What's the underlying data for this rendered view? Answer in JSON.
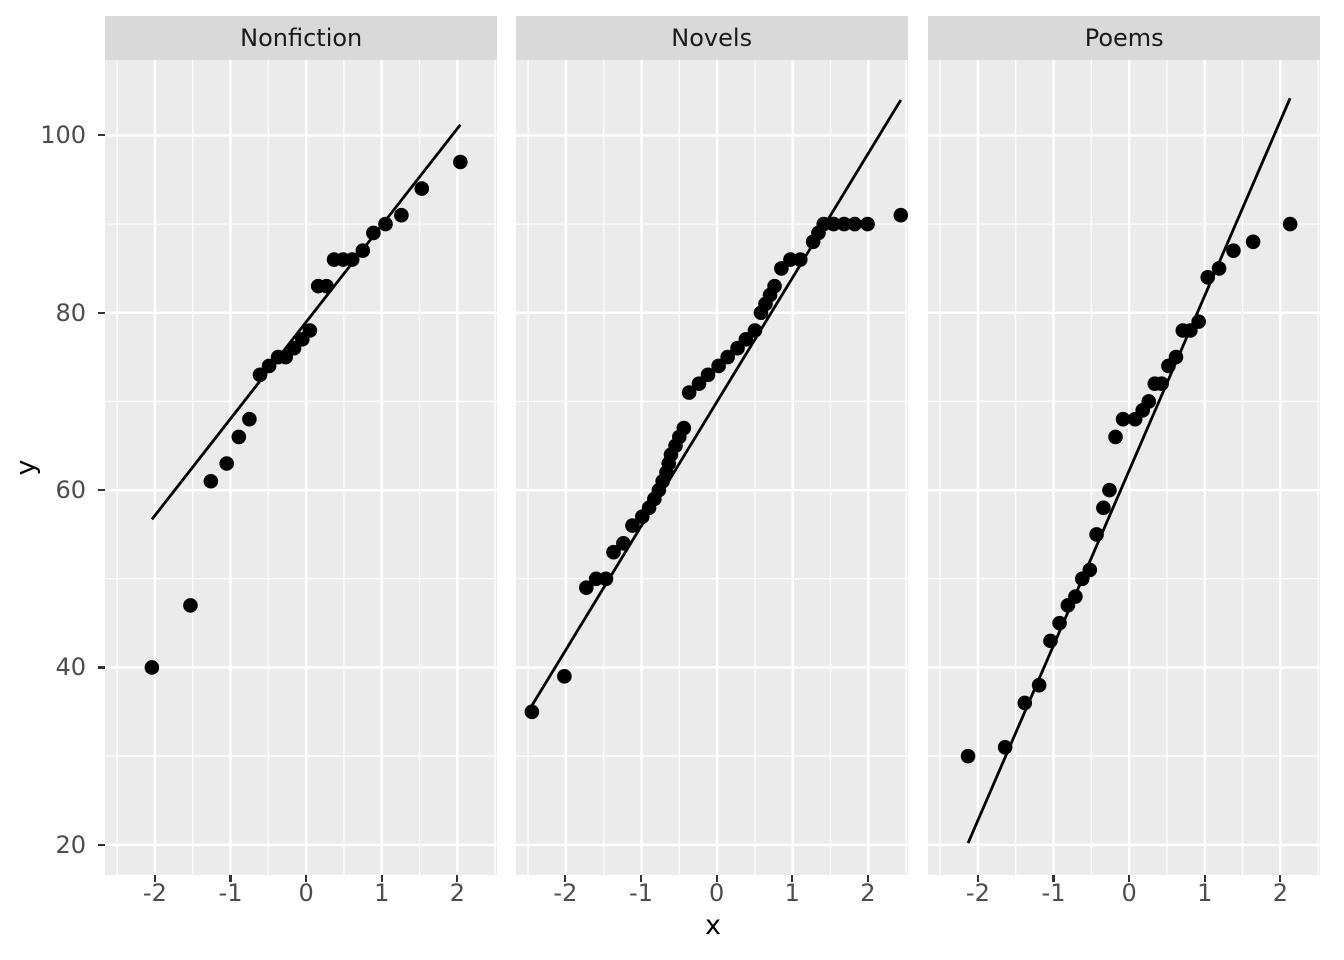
{
  "chart_data": {
    "type": "scatter",
    "description": "Faceted normal Q-Q style scatter plot with reference lines, one panel per book genre",
    "xlabel": "x",
    "ylabel": "y",
    "xlim": [
      -2.66,
      2.53
    ],
    "ylim": [
      16.6,
      108.5
    ],
    "x_major_ticks": [
      -2,
      -1,
      0,
      1,
      2
    ],
    "x_tick_labels": [
      "-2",
      "-1",
      "0",
      "1",
      "2"
    ],
    "x_minor_gridlines": [
      -2.5,
      -1.5,
      -0.5,
      0.5,
      1.5,
      2.5
    ],
    "y_major_ticks": [
      20,
      40,
      60,
      80,
      100
    ],
    "y_tick_labels": [
      "20",
      "40",
      "60",
      "80",
      "100"
    ],
    "y_minor_gridlines": [
      30,
      50,
      70,
      90
    ],
    "grid": true,
    "legend": "none",
    "colors": {
      "panel_background": "#ebebeb",
      "strip_background": "#d9d9d9",
      "gridline": "#ffffff",
      "point": "#000000",
      "line": "#000000",
      "axis_text": "#4d4d4d",
      "axis_title": "#000000",
      "tick_mark": "#333333",
      "page_background": "#ffffff"
    },
    "panels": [
      {
        "label": "Nonfiction",
        "points": [
          [
            -2.04,
            40
          ],
          [
            -1.53,
            47
          ],
          [
            -1.26,
            61
          ],
          [
            -1.05,
            63
          ],
          [
            -0.89,
            66
          ],
          [
            -0.75,
            68
          ],
          [
            -0.61,
            73
          ],
          [
            -0.49,
            74
          ],
          [
            -0.37,
            75
          ],
          [
            -0.27,
            75
          ],
          [
            -0.16,
            76
          ],
          [
            -0.05,
            77
          ],
          [
            0.05,
            78
          ],
          [
            0.16,
            83
          ],
          [
            0.27,
            83
          ],
          [
            0.37,
            86
          ],
          [
            0.49,
            86
          ],
          [
            0.61,
            86
          ],
          [
            0.75,
            87
          ],
          [
            0.89,
            89
          ],
          [
            1.05,
            90
          ],
          [
            1.26,
            91
          ],
          [
            1.53,
            94
          ],
          [
            2.04,
            97
          ]
        ],
        "line": {
          "x1": -2.04,
          "y1": 56.7,
          "x2": 2.04,
          "y2": 101.2
        }
      },
      {
        "label": "Novels",
        "points": [
          [
            -2.45,
            35
          ],
          [
            -2.02,
            39
          ],
          [
            -1.73,
            49
          ],
          [
            -1.6,
            50
          ],
          [
            -1.47,
            50
          ],
          [
            -1.37,
            53
          ],
          [
            -1.24,
            54
          ],
          [
            -1.12,
            56
          ],
          [
            -0.99,
            57
          ],
          [
            -0.9,
            58
          ],
          [
            -0.83,
            59
          ],
          [
            -0.77,
            60
          ],
          [
            -0.72,
            61
          ],
          [
            -0.67,
            62
          ],
          [
            -0.64,
            63
          ],
          [
            -0.61,
            64
          ],
          [
            -0.55,
            65
          ],
          [
            -0.5,
            66
          ],
          [
            -0.44,
            67
          ],
          [
            -0.37,
            71
          ],
          [
            -0.24,
            72
          ],
          [
            -0.12,
            73
          ],
          [
            0.02,
            74
          ],
          [
            0.14,
            75
          ],
          [
            0.27,
            76
          ],
          [
            0.38,
            77
          ],
          [
            0.5,
            78
          ],
          [
            0.58,
            80
          ],
          [
            0.64,
            81
          ],
          [
            0.7,
            82
          ],
          [
            0.76,
            83
          ],
          [
            0.85,
            85
          ],
          [
            0.97,
            86
          ],
          [
            1.1,
            86
          ],
          [
            1.27,
            88
          ],
          [
            1.34,
            89
          ],
          [
            1.41,
            90
          ],
          [
            1.54,
            90
          ],
          [
            1.68,
            90
          ],
          [
            1.82,
            90
          ],
          [
            1.99,
            90
          ],
          [
            2.43,
            91
          ]
        ],
        "line": {
          "x1": -2.45,
          "y1": 35.7,
          "x2": 2.43,
          "y2": 104.0
        }
      },
      {
        "label": "Poems",
        "points": [
          [
            -2.13,
            30
          ],
          [
            -1.64,
            31
          ],
          [
            -1.38,
            36
          ],
          [
            -1.19,
            38
          ],
          [
            -1.04,
            43
          ],
          [
            -0.92,
            45
          ],
          [
            -0.81,
            47
          ],
          [
            -0.71,
            48
          ],
          [
            -0.62,
            50
          ],
          [
            -0.52,
            51
          ],
          [
            -0.43,
            55
          ],
          [
            -0.34,
            58
          ],
          [
            -0.26,
            60
          ],
          [
            -0.18,
            66
          ],
          [
            -0.08,
            68
          ],
          [
            0.08,
            68
          ],
          [
            0.18,
            69
          ],
          [
            0.26,
            70
          ],
          [
            0.34,
            72
          ],
          [
            0.43,
            72
          ],
          [
            0.52,
            74
          ],
          [
            0.62,
            75
          ],
          [
            0.71,
            78
          ],
          [
            0.81,
            78
          ],
          [
            0.92,
            79
          ],
          [
            1.04,
            84
          ],
          [
            1.19,
            85
          ],
          [
            1.38,
            87
          ],
          [
            1.64,
            88
          ],
          [
            2.13,
            90
          ]
        ],
        "line": {
          "x1": -2.13,
          "y1": 20.2,
          "x2": 2.13,
          "y2": 104.2
        }
      }
    ]
  }
}
